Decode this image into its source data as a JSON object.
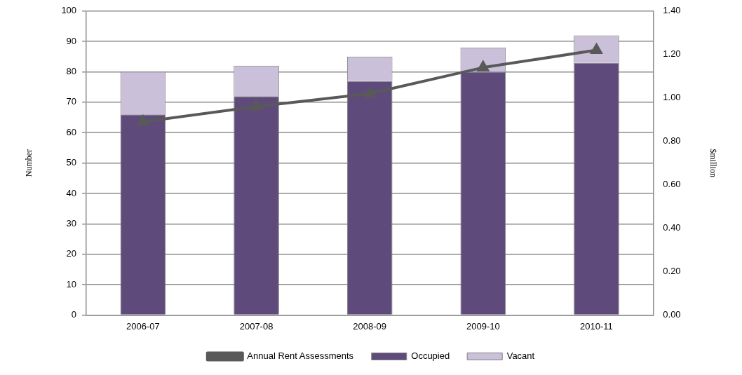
{
  "chart_data": {
    "type": "bar",
    "stacked": true,
    "categories": [
      "2006-07",
      "2007-08",
      "2008-09",
      "2009-10",
      "2010-11"
    ],
    "series": [
      {
        "name": "Occupied",
        "color": "#5f4b7b",
        "values": [
          66,
          72,
          77,
          80,
          83
        ]
      },
      {
        "name": "Vacant",
        "color": "#cbc0da",
        "values": [
          14,
          10,
          8,
          8,
          9
        ]
      },
      {
        "name": "Annual Rent Assessments",
        "type": "line",
        "axis": "y2",
        "color": "#595959",
        "marker": "triangle",
        "values": [
          0.89,
          0.96,
          1.02,
          1.14,
          1.22
        ]
      }
    ],
    "ylabel": "Number",
    "y2label": "$million",
    "ylim": [
      0,
      100
    ],
    "yticks": [
      0,
      10,
      20,
      30,
      40,
      50,
      60,
      70,
      80,
      90,
      100
    ],
    "y2lim": [
      0,
      1.4
    ],
    "y2ticks": [
      {
        "value": 0,
        "label": "0.00"
      },
      {
        "value": 0.2,
        "label": "0.20"
      },
      {
        "value": 0.4,
        "label": "0.40"
      },
      {
        "value": 0.6,
        "label": "0.60"
      },
      {
        "value": 0.8,
        "label": "0.80"
      },
      {
        "value": 1,
        "label": "1.00"
      },
      {
        "value": 1.2,
        "label": "1.20"
      },
      {
        "value": 1.4,
        "label": "1.40"
      }
    ],
    "grid": "y",
    "legend": "bottom"
  }
}
